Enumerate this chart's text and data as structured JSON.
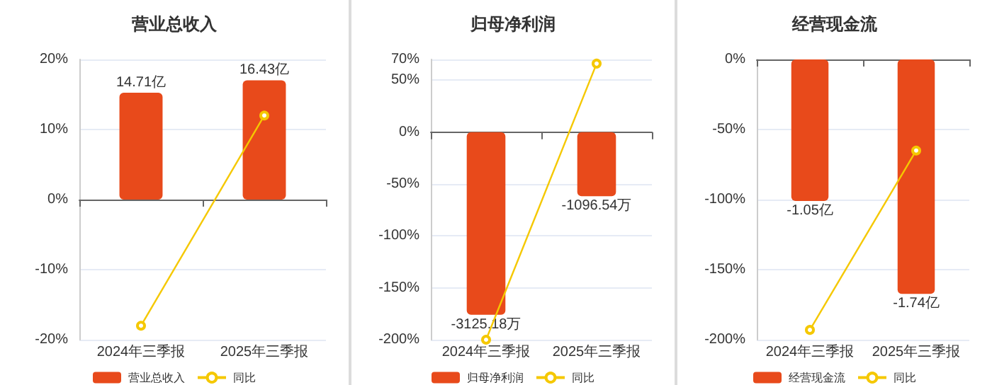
{
  "chart_data": [
    {
      "type": "bar",
      "title": "营业总收入",
      "categories": [
        "2024年三季报",
        "2025年三季报"
      ],
      "series": [
        {
          "name": "营业总收入",
          "color": "#e84a1b",
          "axis": "y2",
          "values": [
            14.71,
            16.43
          ],
          "value_labels": [
            "14.71亿",
            "16.43亿"
          ]
        },
        {
          "name": "同比",
          "type": "line",
          "color": "#f5c800",
          "values": [
            -18,
            12
          ]
        }
      ],
      "ylim": [
        -20,
        20
      ],
      "yticks": [
        {
          "value": -20,
          "label": "-20%"
        },
        {
          "value": -10,
          "label": "-10%"
        },
        {
          "value": 0,
          "label": "0%"
        },
        {
          "value": 10,
          "label": "10%"
        },
        {
          "value": 20,
          "label": "20%"
        }
      ],
      "y2lim": [
        -19.3,
        19.3
      ],
      "grid": "y",
      "legend": "bottom",
      "marker": "circle"
    },
    {
      "type": "bar",
      "title": "归母净利润",
      "categories": [
        "2024年三季报",
        "2025年三季报"
      ],
      "series": [
        {
          "name": "归母净利润",
          "color": "#e84a1b",
          "axis": "y2",
          "values": [
            -3125.18,
            -1096.54
          ],
          "value_labels": [
            "-3125.18万",
            "-1096.54万"
          ]
        },
        {
          "name": "同比",
          "type": "line",
          "color": "#f5c800",
          "values": [
            -200,
            66
          ]
        }
      ],
      "ylim": [
        -200,
        70
      ],
      "yticks": [
        {
          "value": -200,
          "label": "-200%"
        },
        {
          "value": -150,
          "label": "-150%"
        },
        {
          "value": -100,
          "label": "-100%"
        },
        {
          "value": -50,
          "label": "-50%"
        },
        {
          "value": 0,
          "label": "0%"
        },
        {
          "value": 50,
          "label": "50%"
        },
        {
          "value": 70,
          "label": "70%"
        }
      ],
      "y2lim": [
        -3552,
        1243
      ],
      "grid": "y",
      "legend": "bottom",
      "marker": "circle"
    },
    {
      "type": "bar",
      "title": "经营现金流",
      "categories": [
        "2024年三季报",
        "2025年三季报"
      ],
      "series": [
        {
          "name": "经营现金流",
          "color": "#e84a1b",
          "axis": "y2",
          "values": [
            -1.05,
            -1.74
          ],
          "value_labels": [
            "-1.05亿",
            "-1.74亿"
          ]
        },
        {
          "name": "同比",
          "type": "line",
          "color": "#f5c800",
          "values": [
            -193,
            -65
          ]
        }
      ],
      "ylim": [
        -200,
        0
      ],
      "yticks": [
        {
          "value": -200,
          "label": "-200%"
        },
        {
          "value": -150,
          "label": "-150%"
        },
        {
          "value": -100,
          "label": "-100%"
        },
        {
          "value": -50,
          "label": "-50%"
        },
        {
          "value": 0,
          "label": "0%"
        }
      ],
      "y2lim": [
        -2.08,
        0
      ],
      "grid": "y",
      "legend": "bottom",
      "marker": "circle"
    }
  ]
}
